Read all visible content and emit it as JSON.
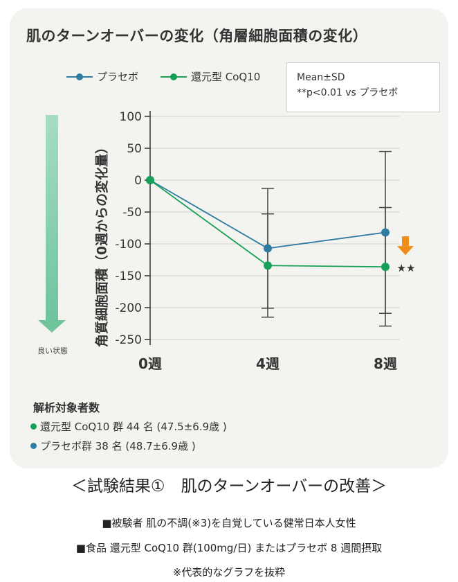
{
  "title": "肌のターンオーバーの変化（角層細胞面積の変化）",
  "legend": [
    {
      "name": "プラセボ",
      "color": "#2e7ca1"
    },
    {
      "name": "還元型 CoQ10",
      "color": "#16a058"
    }
  ],
  "note": {
    "line1": "Mean±SD",
    "line2": "**p<0.01 vs プラセボ"
  },
  "good_direction_label": "良い状態",
  "ylabel": "角質細胞面積（0週からの変化量）",
  "chart_data": {
    "type": "line",
    "categories": [
      "0週",
      "4週",
      "8週"
    ],
    "ylim": [
      -250,
      100
    ],
    "yticks": [
      100,
      50,
      0,
      -50,
      -100,
      -150,
      -200,
      -250
    ],
    "xlabel": "",
    "ylabel": "角質細胞面積（0週からの変化量）",
    "grid": true,
    "series": [
      {
        "name": "プラセボ",
        "color": "#2e7ca1",
        "values": [
          0,
          -107,
          -82
        ],
        "sd": [
          0,
          94,
          127
        ]
      },
      {
        "name": "還元型 CoQ10",
        "color": "#16a058",
        "values": [
          0,
          -134,
          -136
        ],
        "sd": [
          0,
          81,
          93
        ]
      }
    ],
    "annotation": {
      "category": "8週",
      "text": "★★",
      "arrow_color": "#f08c1a"
    }
  },
  "subjects": {
    "title": "解析対象者数",
    "items": [
      {
        "text": "還元型 CoQ10 群 44 名 (47.5±6.9歳 )",
        "color": "#16a058"
      },
      {
        "text": "プラセボ群 38 名 (48.7±6.9歳 )",
        "color": "#2e7ca1"
      }
    ]
  },
  "caption": {
    "main": "＜試験結果①　肌のターンオーバーの改善＞",
    "line1": "■被験者 肌の不調(※3)を自覚している健常日本人女性",
    "line2": "■食品 還元型 CoQ10 群(100mg/日) またはプラセボ 8 週間摂取",
    "line3": "※代表的なグラフを抜粋"
  }
}
